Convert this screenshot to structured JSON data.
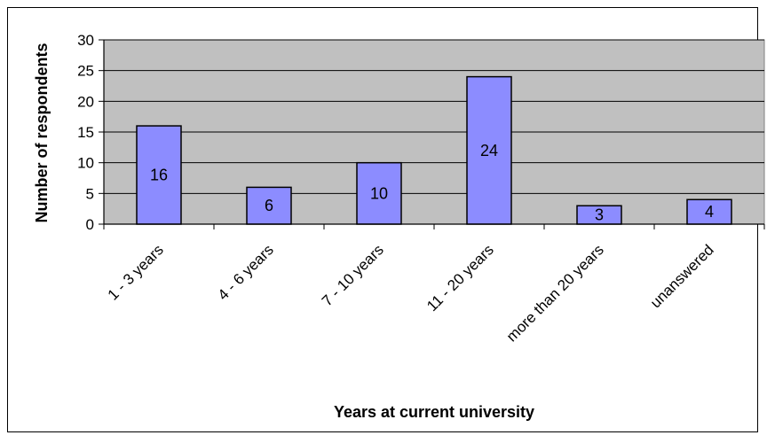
{
  "chart_data": {
    "type": "bar",
    "categories": [
      "1 - 3 years",
      "4 - 6 years",
      "7 - 10 years",
      "11 - 20 years",
      "more than 20 years",
      "unanswered"
    ],
    "values": [
      16,
      6,
      10,
      24,
      3,
      4
    ],
    "title": "",
    "xlabel": "Years at current university",
    "ylabel": "Number of respondents",
    "ylim": [
      0,
      30
    ],
    "yticks": [
      0,
      5,
      10,
      15,
      20,
      25,
      30
    ],
    "grid": true,
    "legend": "none",
    "colors": {
      "plot_background": "#c0c0c0",
      "bar_fill": "#8c8cff",
      "bar_stroke": "#000000",
      "gridline": "#000000"
    }
  }
}
